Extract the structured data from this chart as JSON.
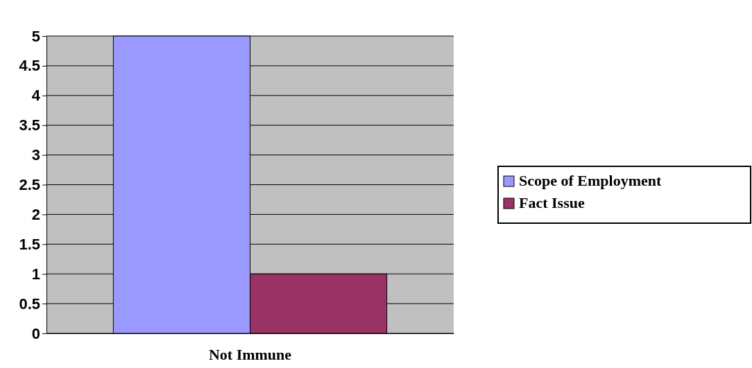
{
  "chart_data": {
    "type": "bar",
    "categories": [
      "Not Immune"
    ],
    "series": [
      {
        "name": "Scope of Employment",
        "color": "#9999ff",
        "values": [
          5
        ]
      },
      {
        "name": "Fact Issue",
        "color": "#993366",
        "values": [
          1
        ]
      }
    ],
    "ylim": [
      0,
      5
    ],
    "yticks": [
      0,
      0.5,
      1,
      1.5,
      2,
      2.5,
      3,
      3.5,
      4,
      4.5,
      5
    ],
    "grid": "y",
    "legend": "right"
  }
}
